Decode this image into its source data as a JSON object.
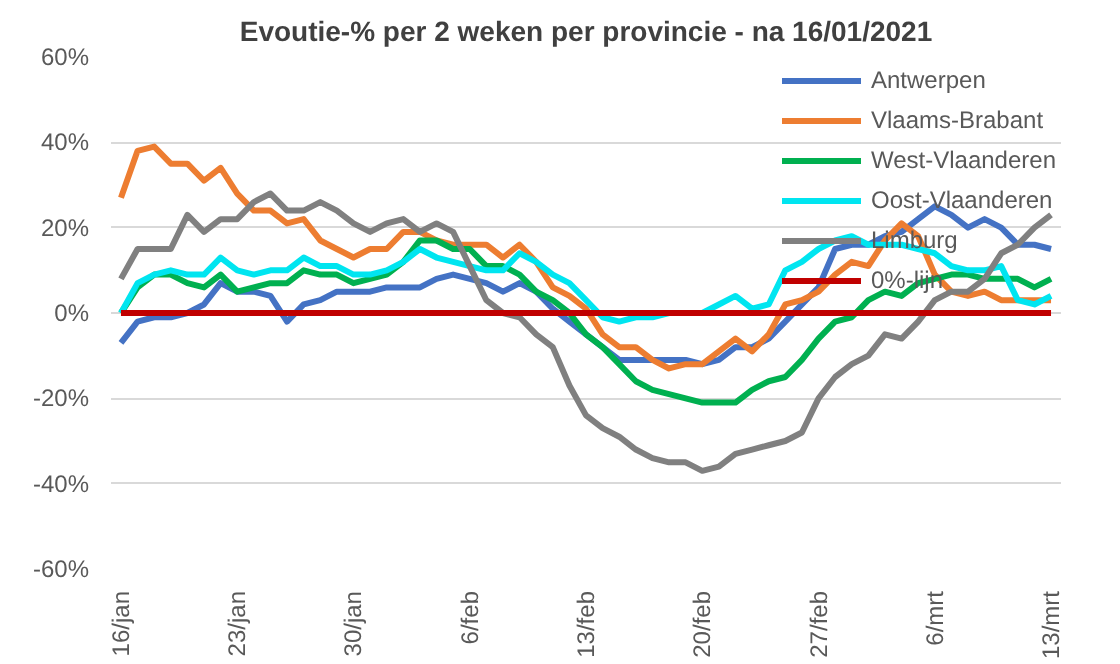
{
  "chart_data": {
    "type": "line",
    "title": "Evoutie-% per 2 weken per provincie - na 16/01/2021",
    "categories": [
      "16/jan",
      null,
      null,
      null,
      null,
      null,
      null,
      "23/jan",
      null,
      null,
      null,
      null,
      null,
      null,
      "30/jan",
      null,
      null,
      null,
      null,
      null,
      null,
      "6/feb",
      null,
      null,
      null,
      null,
      null,
      null,
      "13/feb",
      null,
      null,
      null,
      null,
      null,
      null,
      "20/feb",
      null,
      null,
      null,
      null,
      null,
      null,
      "27/feb",
      null,
      null,
      null,
      null,
      null,
      null,
      "6/mrt",
      null,
      null,
      null,
      null,
      null,
      null,
      "13/mrt"
    ],
    "series": [
      {
        "name": "Antwerpen",
        "color": "#4472c4",
        "values": [
          -7,
          -2,
          -1,
          -1,
          0,
          2,
          7,
          5,
          5,
          4,
          -2,
          2,
          3,
          5,
          5,
          5,
          6,
          6,
          6,
          8,
          9,
          8,
          7,
          5,
          7,
          5,
          1,
          -2,
          -5,
          -8,
          -11,
          -11,
          -11,
          -11,
          -11,
          -12,
          -11,
          -8,
          -8,
          -6,
          -2,
          2,
          6,
          15,
          16,
          16,
          18,
          19,
          22,
          25,
          23,
          20,
          22,
          20,
          16,
          16,
          15
        ]
      },
      {
        "name": "Vlaams-Brabant",
        "color": "#ed7d31",
        "values": [
          27,
          38,
          39,
          35,
          35,
          31,
          34,
          28,
          24,
          24,
          21,
          22,
          17,
          15,
          13,
          15,
          15,
          19,
          19,
          17,
          16,
          16,
          16,
          13,
          16,
          12,
          6,
          4,
          1,
          -5,
          -8,
          -8,
          -11,
          -13,
          -12,
          -12,
          -9,
          -6,
          -9,
          -5,
          2,
          3,
          5,
          9,
          12,
          11,
          17,
          21,
          18,
          9,
          5,
          4,
          5,
          3,
          3,
          3,
          3
        ]
      },
      {
        "name": "West-Vlaanderen",
        "color": "#00b050",
        "values": [
          0,
          6,
          9,
          9,
          7,
          6,
          9,
          5,
          6,
          7,
          7,
          10,
          9,
          9,
          7,
          8,
          9,
          12,
          17,
          17,
          15,
          15,
          11,
          11,
          9,
          5,
          3,
          0,
          -5,
          -8,
          -12,
          -16,
          -18,
          -19,
          -20,
          -21,
          -21,
          -21,
          -18,
          -16,
          -15,
          -11,
          -6,
          -2,
          -1,
          3,
          5,
          4,
          7,
          8,
          9,
          9,
          8,
          8,
          8,
          6,
          8
        ]
      },
      {
        "name": "Oost-Vlaanderen",
        "color": "#00e5f0",
        "values": [
          0,
          7,
          9,
          10,
          9,
          9,
          13,
          10,
          9,
          10,
          10,
          13,
          11,
          11,
          9,
          9,
          10,
          12,
          15,
          13,
          12,
          11,
          10,
          10,
          14,
          12,
          9,
          7,
          3,
          -1,
          -2,
          -1,
          -1,
          0,
          0,
          0,
          2,
          4,
          1,
          2,
          10,
          12,
          15,
          17,
          18,
          16,
          16,
          16,
          15,
          14,
          11,
          10,
          10,
          11,
          3,
          2,
          4
        ]
      },
      {
        "name": "Limburg",
        "color": "#808080",
        "values": [
          8,
          15,
          15,
          15,
          23,
          19,
          22,
          22,
          26,
          28,
          24,
          24,
          26,
          24,
          21,
          19,
          21,
          22,
          19,
          21,
          19,
          11,
          3,
          0,
          -1,
          -5,
          -8,
          -17,
          -24,
          -27,
          -29,
          -32,
          -34,
          -35,
          -35,
          -37,
          -36,
          -33,
          -32,
          -31,
          -30,
          -28,
          -20,
          -15,
          -12,
          -10,
          -5,
          -6,
          -2,
          3,
          5,
          5,
          8,
          14,
          16,
          20,
          23
        ]
      },
      {
        "name": "0%-lijn",
        "color": "#c00000",
        "values": [
          0,
          0,
          0,
          0,
          0,
          0,
          0,
          0,
          0,
          0,
          0,
          0,
          0,
          0,
          0,
          0,
          0,
          0,
          0,
          0,
          0,
          0,
          0,
          0,
          0,
          0,
          0,
          0,
          0,
          0,
          0,
          0,
          0,
          0,
          0,
          0,
          0,
          0,
          0,
          0,
          0,
          0,
          0,
          0,
          0,
          0,
          0,
          0,
          0,
          0,
          0,
          0,
          0,
          0,
          0,
          0,
          0
        ]
      }
    ],
    "ylim": [
      -60,
      60
    ],
    "yticks": [
      {
        "value": -60,
        "label": "-60%"
      },
      {
        "value": -40,
        "label": "-40%"
      },
      {
        "value": -20,
        "label": "-20%"
      },
      {
        "value": 0,
        "label": "0%"
      },
      {
        "value": 20,
        "label": "20%"
      },
      {
        "value": 40,
        "label": "40%"
      },
      {
        "value": 60,
        "label": "60%"
      }
    ],
    "grid": "y",
    "legend": "top right",
    "marker": "none",
    "line_style": "solid"
  }
}
